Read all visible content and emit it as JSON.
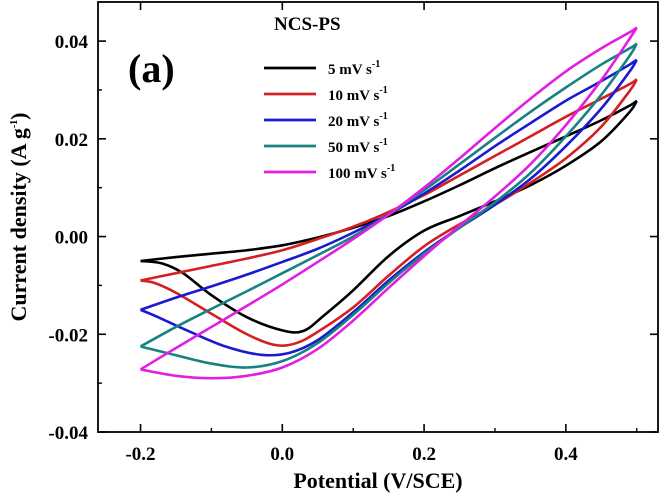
{
  "chart_data": {
    "type": "line",
    "title": "NCS-PS",
    "panel_label": "(a)",
    "xlabel": "Potential (V/SCE)",
    "ylabel": "Current density (A g",
    "ylabel_sup": "-1",
    "ylabel_close": ")",
    "xlim": [
      -0.26,
      0.53
    ],
    "ylim": [
      -0.04,
      0.048
    ],
    "x_ticks": [
      -0.2,
      0.0,
      0.2,
      0.4
    ],
    "x_tick_labels": [
      "-0.2",
      "0.0",
      "0.2",
      "0.4"
    ],
    "y_ticks": [
      -0.04,
      -0.02,
      0.0,
      0.02,
      0.04
    ],
    "y_tick_labels": [
      "-0.04",
      "-0.02",
      "0.00",
      "0.02",
      "0.04"
    ],
    "grid": false,
    "legend_position": "top-center",
    "series": [
      {
        "name": "5 mV s",
        "sup": "-1",
        "color": "#000000",
        "forward": [
          [
            -0.2,
            -0.005
          ],
          [
            -0.15,
            -0.0042
          ],
          [
            -0.1,
            -0.0035
          ],
          [
            -0.05,
            -0.0028
          ],
          [
            0.0,
            -0.0018
          ],
          [
            0.05,
            -0.0002
          ],
          [
            0.1,
            0.0018
          ],
          [
            0.15,
            0.0042
          ],
          [
            0.2,
            0.0072
          ],
          [
            0.25,
            0.0105
          ],
          [
            0.3,
            0.014
          ],
          [
            0.35,
            0.0173
          ],
          [
            0.4,
            0.0205
          ],
          [
            0.45,
            0.0238
          ],
          [
            0.49,
            0.0268
          ],
          [
            0.5,
            0.0278
          ]
        ],
        "reverse": [
          [
            0.5,
            0.0278
          ],
          [
            0.49,
            0.0255
          ],
          [
            0.45,
            0.0195
          ],
          [
            0.4,
            0.0145
          ],
          [
            0.35,
            0.0105
          ],
          [
            0.3,
            0.0072
          ],
          [
            0.25,
            0.0042
          ],
          [
            0.2,
            0.0012
          ],
          [
            0.15,
            -0.004
          ],
          [
            0.1,
            -0.011
          ],
          [
            0.06,
            -0.016
          ],
          [
            0.03,
            -0.0193
          ],
          [
            0.0,
            -0.0192
          ],
          [
            -0.05,
            -0.0165
          ],
          [
            -0.1,
            -0.012
          ],
          [
            -0.14,
            -0.0075
          ],
          [
            -0.17,
            -0.0055
          ],
          [
            -0.2,
            -0.005
          ]
        ]
      },
      {
        "name": "10 mV s",
        "sup": "-1",
        "color": "#d42020",
        "forward": [
          [
            -0.2,
            -0.009
          ],
          [
            -0.15,
            -0.0075
          ],
          [
            -0.1,
            -0.006
          ],
          [
            -0.05,
            -0.0045
          ],
          [
            0.0,
            -0.0028
          ],
          [
            0.05,
            -0.0005
          ],
          [
            0.1,
            0.002
          ],
          [
            0.15,
            0.005
          ],
          [
            0.2,
            0.0085
          ],
          [
            0.25,
            0.0125
          ],
          [
            0.3,
            0.0165
          ],
          [
            0.35,
            0.0205
          ],
          [
            0.4,
            0.0245
          ],
          [
            0.45,
            0.0282
          ],
          [
            0.49,
            0.0312
          ],
          [
            0.5,
            0.0322
          ]
        ],
        "reverse": [
          [
            0.5,
            0.0322
          ],
          [
            0.49,
            0.0298
          ],
          [
            0.45,
            0.0225
          ],
          [
            0.4,
            0.016
          ],
          [
            0.35,
            0.011
          ],
          [
            0.3,
            0.0065
          ],
          [
            0.25,
            0.0025
          ],
          [
            0.2,
            -0.002
          ],
          [
            0.15,
            -0.008
          ],
          [
            0.1,
            -0.0145
          ],
          [
            0.05,
            -0.0195
          ],
          [
            0.02,
            -0.0218
          ],
          [
            -0.01,
            -0.0222
          ],
          [
            -0.05,
            -0.02
          ],
          [
            -0.1,
            -0.0158
          ],
          [
            -0.15,
            -0.0115
          ],
          [
            -0.18,
            -0.0095
          ],
          [
            -0.2,
            -0.009
          ]
        ]
      },
      {
        "name": "20 mV s",
        "sup": "-1",
        "color": "#1a1ad0",
        "forward": [
          [
            -0.2,
            -0.015
          ],
          [
            -0.15,
            -0.0125
          ],
          [
            -0.1,
            -0.0102
          ],
          [
            -0.05,
            -0.0078
          ],
          [
            0.0,
            -0.0052
          ],
          [
            0.05,
            -0.0025
          ],
          [
            0.1,
            0.0008
          ],
          [
            0.15,
            0.0045
          ],
          [
            0.2,
            0.0088
          ],
          [
            0.25,
            0.0135
          ],
          [
            0.3,
            0.0185
          ],
          [
            0.35,
            0.0232
          ],
          [
            0.4,
            0.0278
          ],
          [
            0.45,
            0.0318
          ],
          [
            0.49,
            0.0352
          ],
          [
            0.5,
            0.0362
          ]
        ],
        "reverse": [
          [
            0.5,
            0.0362
          ],
          [
            0.49,
            0.0338
          ],
          [
            0.45,
            0.0262
          ],
          [
            0.4,
            0.0185
          ],
          [
            0.35,
            0.0118
          ],
          [
            0.3,
            0.0065
          ],
          [
            0.25,
            0.0018
          ],
          [
            0.2,
            -0.0032
          ],
          [
            0.15,
            -0.009
          ],
          [
            0.1,
            -0.0155
          ],
          [
            0.05,
            -0.0212
          ],
          [
            0.01,
            -0.0238
          ],
          [
            -0.03,
            -0.0242
          ],
          [
            -0.08,
            -0.0225
          ],
          [
            -0.13,
            -0.0195
          ],
          [
            -0.18,
            -0.0162
          ],
          [
            -0.2,
            -0.015
          ]
        ]
      },
      {
        "name": "50 mV s",
        "sup": "-1",
        "color": "#168282",
        "forward": [
          [
            -0.2,
            -0.0225
          ],
          [
            -0.15,
            -0.0185
          ],
          [
            -0.1,
            -0.0148
          ],
          [
            -0.05,
            -0.0112
          ],
          [
            0.0,
            -0.0075
          ],
          [
            0.05,
            -0.0038
          ],
          [
            0.1,
            0.0
          ],
          [
            0.15,
            0.0045
          ],
          [
            0.2,
            0.0095
          ],
          [
            0.25,
            0.0148
          ],
          [
            0.3,
            0.0202
          ],
          [
            0.35,
            0.0255
          ],
          [
            0.4,
            0.0305
          ],
          [
            0.45,
            0.0352
          ],
          [
            0.49,
            0.0385
          ],
          [
            0.5,
            0.0395
          ]
        ],
        "reverse": [
          [
            0.5,
            0.0395
          ],
          [
            0.49,
            0.037
          ],
          [
            0.45,
            0.029
          ],
          [
            0.4,
            0.0205
          ],
          [
            0.35,
            0.013
          ],
          [
            0.3,
            0.007
          ],
          [
            0.25,
            0.0018
          ],
          [
            0.2,
            -0.0035
          ],
          [
            0.15,
            -0.0095
          ],
          [
            0.1,
            -0.016
          ],
          [
            0.05,
            -0.0218
          ],
          [
            0.0,
            -0.0255
          ],
          [
            -0.05,
            -0.0268
          ],
          [
            -0.1,
            -0.026
          ],
          [
            -0.15,
            -0.0243
          ],
          [
            -0.2,
            -0.0225
          ]
        ]
      },
      {
        "name": "100 mV s",
        "sup": "-1",
        "color": "#e21ee2",
        "forward": [
          [
            -0.2,
            -0.0272
          ],
          [
            -0.15,
            -0.0228
          ],
          [
            -0.1,
            -0.0185
          ],
          [
            -0.05,
            -0.0142
          ],
          [
            0.0,
            -0.0098
          ],
          [
            0.05,
            -0.0052
          ],
          [
            0.1,
            -0.0005
          ],
          [
            0.15,
            0.0045
          ],
          [
            0.2,
            0.01
          ],
          [
            0.25,
            0.016
          ],
          [
            0.3,
            0.0222
          ],
          [
            0.35,
            0.0282
          ],
          [
            0.4,
            0.0338
          ],
          [
            0.45,
            0.0385
          ],
          [
            0.49,
            0.0418
          ],
          [
            0.5,
            0.0428
          ]
        ],
        "reverse": [
          [
            0.5,
            0.0428
          ],
          [
            0.49,
            0.0405
          ],
          [
            0.45,
            0.032
          ],
          [
            0.4,
            0.0228
          ],
          [
            0.35,
            0.0148
          ],
          [
            0.3,
            0.0082
          ],
          [
            0.25,
            0.0022
          ],
          [
            0.2,
            -0.004
          ],
          [
            0.15,
            -0.0105
          ],
          [
            0.1,
            -0.0172
          ],
          [
            0.05,
            -0.023
          ],
          [
            0.0,
            -0.0268
          ],
          [
            -0.05,
            -0.0285
          ],
          [
            -0.1,
            -0.029
          ],
          [
            -0.15,
            -0.0285
          ],
          [
            -0.2,
            -0.0272
          ]
        ]
      }
    ]
  }
}
